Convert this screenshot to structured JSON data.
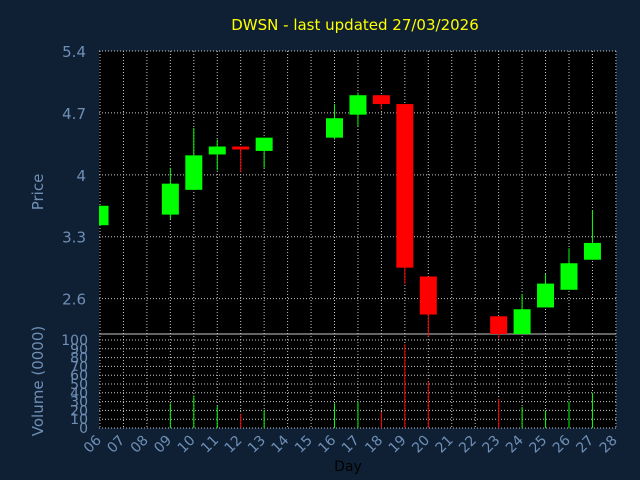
{
  "title": "DWSN - last updated 27/03/2026",
  "colors": {
    "background": "#0f2035",
    "plot": "#000000",
    "up": "#00ff00",
    "down": "#ff0000",
    "grid": "#c8c8c8",
    "axis_text": "#6f8fb5",
    "title": "#ffff00"
  },
  "chart_data": [
    {
      "type": "candlestick",
      "ylabel": "Price",
      "ylim": [
        2.2,
        5.4
      ],
      "yticks": [
        "5.4",
        "4.7",
        "4",
        "3.3",
        "2.6"
      ],
      "grid": true,
      "candles": [
        {
          "x": "06",
          "open": 3.43,
          "close": 3.65,
          "high": 3.65,
          "low": 3.43
        },
        {
          "x": "09",
          "open": 3.55,
          "close": 3.9,
          "high": 4.08,
          "low": 3.5
        },
        {
          "x": "10",
          "open": 3.83,
          "close": 4.22,
          "high": 4.53,
          "low": 3.83
        },
        {
          "x": "11",
          "open": 4.23,
          "close": 4.32,
          "high": 4.4,
          "low": 4.05
        },
        {
          "x": "12",
          "open": 4.32,
          "close": 4.3,
          "high": 4.32,
          "low": 4.03
        },
        {
          "x": "13",
          "open": 4.27,
          "close": 4.42,
          "high": 4.42,
          "low": 4.08
        },
        {
          "x": "16",
          "open": 4.42,
          "close": 4.64,
          "high": 4.8,
          "low": 4.4
        },
        {
          "x": "17",
          "open": 4.68,
          "close": 4.9,
          "high": 4.93,
          "low": 4.55
        },
        {
          "x": "18",
          "open": 4.9,
          "close": 4.8,
          "high": 4.9,
          "low": 4.74
        },
        {
          "x": "19",
          "open": 4.8,
          "close": 2.95,
          "high": 4.8,
          "low": 2.77
        },
        {
          "x": "20",
          "open": 2.85,
          "close": 2.42,
          "high": 2.85,
          "low": 2.17
        },
        {
          "x": "23",
          "open": 2.4,
          "close": 2.2,
          "high": 2.4,
          "low": 2.15
        },
        {
          "x": "24",
          "open": 2.2,
          "close": 2.48,
          "high": 2.65,
          "low": 2.2
        },
        {
          "x": "25",
          "open": 2.5,
          "close": 2.77,
          "high": 2.88,
          "low": 2.5
        },
        {
          "x": "26",
          "open": 2.7,
          "close": 3.0,
          "high": 3.17,
          "low": 2.7
        },
        {
          "x": "27",
          "open": 3.04,
          "close": 3.23,
          "high": 3.6,
          "low": 3.04
        }
      ]
    },
    {
      "type": "bar",
      "ylabel": "Volume (0000)",
      "xlabel": "Day",
      "ylim": [
        0,
        100
      ],
      "yticks": [
        "100",
        "90",
        "80",
        "70",
        "60",
        "50",
        "40",
        "30",
        "20",
        "10",
        "0"
      ],
      "grid": true,
      "categories": [
        "06",
        "07",
        "08",
        "09",
        "10",
        "11",
        "12",
        "13",
        "14",
        "15",
        "16",
        "17",
        "18",
        "19",
        "20",
        "21",
        "22",
        "23",
        "24",
        "25",
        "26",
        "27",
        "28"
      ],
      "values": [
        0,
        0,
        0,
        28,
        37,
        25,
        16,
        20,
        0,
        0,
        28,
        30,
        18,
        95,
        53,
        0,
        0,
        33,
        24,
        20,
        30,
        40,
        0
      ],
      "direction": [
        "",
        "",
        "",
        "up",
        "up",
        "up",
        "down",
        "up",
        "",
        "",
        "up",
        "up",
        "down",
        "down",
        "down",
        "",
        "",
        "down",
        "up",
        "up",
        "up",
        "up",
        ""
      ]
    }
  ]
}
